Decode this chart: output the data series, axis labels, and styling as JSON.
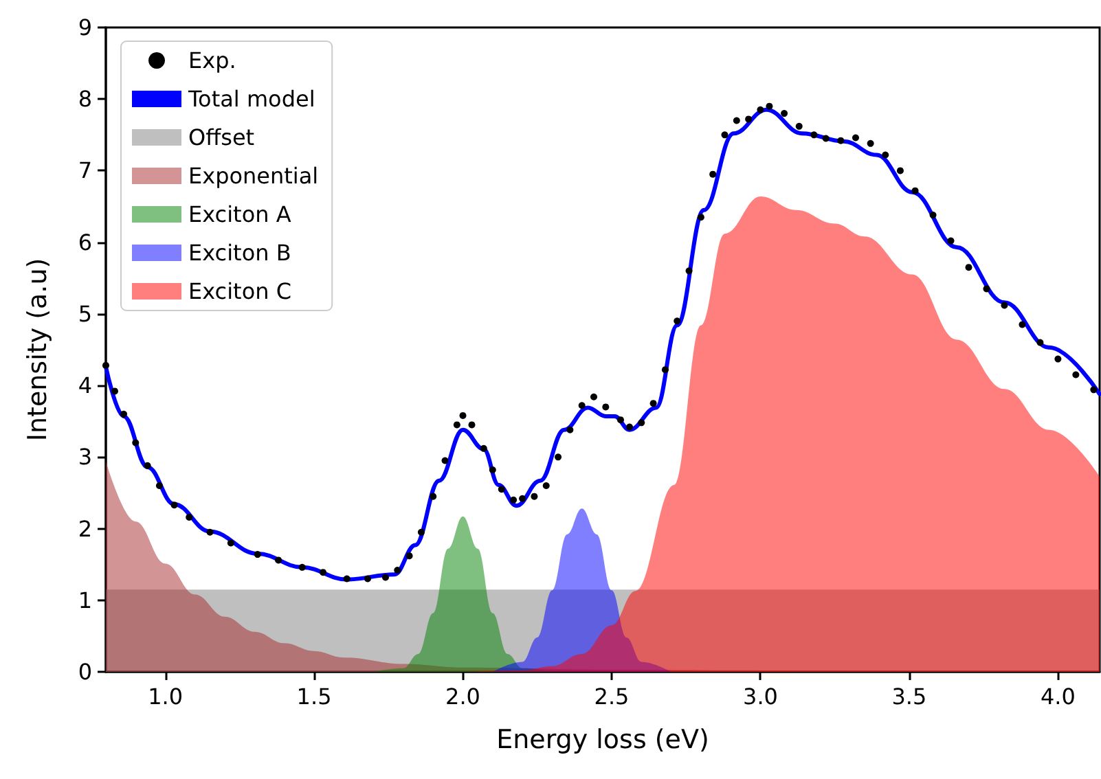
{
  "chart_data": {
    "type": "line",
    "xlabel": "Energy loss (eV)",
    "ylabel": "Intensity (a.u)",
    "xlim": [
      0.8,
      4.14
    ],
    "xticks": [
      {
        "value": 1,
        "label": "1.0"
      },
      {
        "value": 1.5,
        "label": "1.5"
      },
      {
        "value": 2,
        "label": "2.0"
      },
      {
        "value": 2.5,
        "label": "2.5"
      },
      {
        "value": 3,
        "label": "3.0"
      },
      {
        "value": 3.5,
        "label": "3.5"
      },
      {
        "value": 4,
        "label": "4.0"
      }
    ],
    "ylim": [
      0,
      9
    ],
    "yticks": [
      0,
      1,
      2,
      3,
      4,
      5,
      6,
      7,
      8,
      9
    ],
    "grid": false,
    "legend": "top left",
    "series": [
      {
        "name": "Offset",
        "type": "area",
        "color": "#808080",
        "x": [
          0.8,
          4.14
        ],
        "values": [
          1.15,
          1.15
        ]
      },
      {
        "name": "Exponential",
        "type": "area",
        "color": "#a52a2a",
        "x": [
          0.8,
          0.9,
          1.0,
          1.1,
          1.2,
          1.3,
          1.4,
          1.5,
          1.6,
          1.8,
          2.0,
          2.5,
          3.0,
          3.5,
          4.14
        ],
        "values": [
          2.94,
          2.1,
          1.51,
          1.08,
          0.77,
          0.56,
          0.4,
          0.29,
          0.2,
          0.11,
          0.06,
          0.03,
          0.02,
          0.01,
          0.01
        ]
      },
      {
        "name": "Exciton A",
        "type": "area",
        "color": "#008000",
        "x": [
          1.7,
          1.8,
          1.85,
          1.9,
          1.95,
          2.0,
          2.05,
          2.1,
          2.15,
          2.2,
          2.3
        ],
        "values": [
          0,
          0.05,
          0.25,
          0.82,
          1.72,
          2.17,
          1.72,
          0.82,
          0.25,
          0.05,
          0
        ]
      },
      {
        "name": "Exciton B",
        "type": "area",
        "color": "#0000ff",
        "x": [
          2.1,
          2.2,
          2.25,
          2.3,
          2.35,
          2.4,
          2.45,
          2.5,
          2.55,
          2.6,
          2.7
        ],
        "values": [
          0,
          0.14,
          0.48,
          1.14,
          1.92,
          2.28,
          1.92,
          1.14,
          0.48,
          0.14,
          0
        ]
      },
      {
        "name": "Exciton C",
        "type": "area",
        "color": "#ff0000",
        "x": [
          2.0,
          2.2,
          2.3,
          2.4,
          2.5,
          2.58,
          2.71,
          2.8,
          2.88,
          3.0,
          3.12,
          3.25,
          3.35,
          3.51,
          3.66,
          3.82,
          3.97,
          4.14
        ],
        "values": [
          0,
          0.02,
          0.08,
          0.25,
          0.65,
          1.13,
          2.61,
          4.84,
          6.12,
          6.64,
          6.45,
          6.26,
          6.08,
          5.55,
          4.64,
          3.95,
          3.38,
          2.73
        ]
      },
      {
        "name": "Total model",
        "color": "#0000ff",
        "x": [
          0.8,
          0.86,
          0.94,
          1.03,
          1.15,
          1.31,
          1.46,
          1.61,
          1.77,
          1.84,
          1.92,
          2.0,
          2.07,
          2.12,
          2.18,
          2.26,
          2.34,
          2.42,
          2.48,
          2.51,
          2.56,
          2.65,
          2.72,
          2.81,
          2.91,
          3.02,
          3.14,
          3.28,
          3.39,
          3.51,
          3.66,
          3.82,
          3.97,
          4.14
        ],
        "values": [
          4.26,
          3.57,
          2.86,
          2.34,
          1.96,
          1.65,
          1.46,
          1.29,
          1.36,
          1.77,
          2.67,
          3.38,
          3.11,
          2.61,
          2.32,
          2.67,
          3.38,
          3.69,
          3.57,
          3.57,
          3.38,
          3.69,
          4.84,
          6.45,
          7.52,
          7.85,
          7.52,
          7.41,
          7.22,
          6.7,
          5.93,
          5.16,
          4.53,
          3.88
        ]
      },
      {
        "name": "Exp.",
        "type": "scatter",
        "color": "#000000",
        "marker": "circle",
        "x": [
          0.8,
          0.83,
          0.86,
          0.9,
          0.94,
          0.98,
          1.03,
          1.08,
          1.15,
          1.22,
          1.31,
          1.38,
          1.46,
          1.53,
          1.61,
          1.68,
          1.74,
          1.78,
          1.82,
          1.86,
          1.9,
          1.94,
          1.98,
          2.0,
          2.03,
          2.07,
          2.1,
          2.13,
          2.17,
          2.2,
          2.24,
          2.28,
          2.32,
          2.36,
          2.4,
          2.44,
          2.48,
          2.53,
          2.56,
          2.6,
          2.64,
          2.68,
          2.72,
          2.76,
          2.8,
          2.84,
          2.88,
          2.92,
          2.96,
          3.0,
          3.03,
          3.08,
          3.13,
          3.18,
          3.22,
          3.27,
          3.32,
          3.37,
          3.42,
          3.47,
          3.52,
          3.58,
          3.64,
          3.7,
          3.76,
          3.82,
          3.88,
          3.94,
          4.0,
          4.06,
          4.12
        ],
        "values": [
          4.28,
          3.92,
          3.6,
          3.2,
          2.88,
          2.6,
          2.33,
          2.16,
          1.95,
          1.8,
          1.64,
          1.56,
          1.46,
          1.39,
          1.3,
          1.3,
          1.32,
          1.42,
          1.62,
          1.95,
          2.45,
          2.95,
          3.45,
          3.58,
          3.45,
          3.12,
          2.82,
          2.55,
          2.4,
          2.42,
          2.45,
          2.6,
          3.0,
          3.38,
          3.72,
          3.84,
          3.7,
          3.52,
          3.42,
          3.48,
          3.75,
          4.22,
          4.9,
          5.6,
          6.35,
          6.95,
          7.5,
          7.7,
          7.72,
          7.85,
          7.9,
          7.8,
          7.62,
          7.5,
          7.45,
          7.42,
          7.46,
          7.38,
          7.22,
          7.0,
          6.72,
          6.38,
          6.02,
          5.65,
          5.35,
          5.12,
          4.85,
          4.6,
          4.37,
          4.15,
          3.94
        ]
      }
    ]
  }
}
